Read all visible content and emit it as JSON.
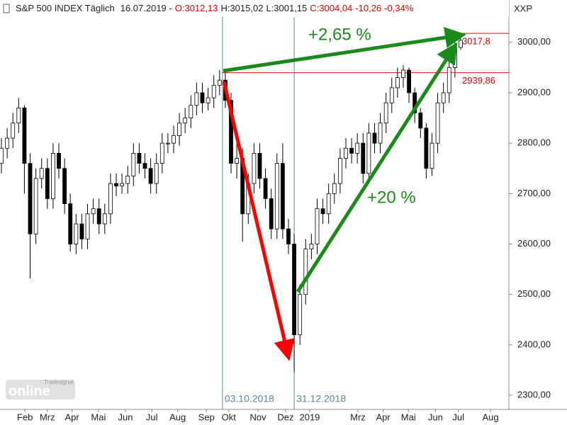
{
  "chart_data": {
    "type": "candlestick",
    "header": {
      "title": "S&P 500 INDEX Täglich",
      "date": "16.07.2019 -",
      "open": "O:3012,13",
      "high": "H:3015,02",
      "low": "L:3001,15",
      "close": "C:3004,04",
      "change": "-10,26",
      "change_pct": "-0,34%"
    },
    "symbol": "XXP",
    "logo": {
      "small": "Tradesignal",
      "big": "online"
    },
    "annotations": {
      "gain_top": "+2,65 %",
      "gain_rebound": "+20 %"
    },
    "up_color": "#ffffff",
    "down_color": "#000000",
    "line_color": "#ff0000",
    "arrow_up_color": "#1a8a1a",
    "arrow_down_color": "#ff0000",
    "open": [
      2760,
      2790,
      2810,
      2840,
      2870,
      2760,
      2620,
      2730,
      2750,
      2690,
      2780,
      2750,
      2680,
      2600,
      2640,
      2610,
      2660,
      2670,
      2640,
      2660,
      2720,
      2715,
      2720,
      2735,
      2780,
      2760,
      2750,
      2720,
      2760,
      2800,
      2800,
      2815,
      2840,
      2850,
      2875,
      2900,
      2880,
      2890,
      2915,
      2925,
      2885,
      2760,
      2770,
      2660,
      2720,
      2780,
      2730,
      2690,
      2630,
      2760,
      2630,
      2600,
      2420,
      2500,
      2590,
      2600,
      2670,
      2660,
      2700,
      2720,
      2770,
      2790,
      2780,
      2800,
      2740,
      2820,
      2800,
      2840,
      2880,
      2910,
      2930,
      2945,
      2900,
      2860,
      2830,
      2750,
      2800,
      2880,
      2900,
      2950,
      2990
    ],
    "high": [
      2810,
      2830,
      2860,
      2890,
      2875,
      2780,
      2750,
      2770,
      2770,
      2800,
      2800,
      2770,
      2700,
      2660,
      2660,
      2680,
      2690,
      2690,
      2680,
      2740,
      2740,
      2740,
      2755,
      2800,
      2800,
      2780,
      2770,
      2780,
      2820,
      2820,
      2835,
      2860,
      2870,
      2895,
      2920,
      2920,
      2910,
      2935,
      2945,
      2940,
      2900,
      2800,
      2790,
      2740,
      2800,
      2800,
      2750,
      2710,
      2780,
      2800,
      2650,
      2620,
      2520,
      2610,
      2620,
      2690,
      2690,
      2720,
      2740,
      2790,
      2810,
      2810,
      2820,
      2820,
      2840,
      2840,
      2860,
      2900,
      2930,
      2950,
      2955,
      2950,
      2910,
      2870,
      2840,
      2820,
      2900,
      2920,
      2970,
      3010,
      3017
    ],
    "low": [
      2740,
      2770,
      2790,
      2820,
      2700,
      2532,
      2600,
      2710,
      2670,
      2670,
      2730,
      2660,
      2585,
      2580,
      2590,
      2590,
      2640,
      2620,
      2620,
      2640,
      2695,
      2700,
      2700,
      2715,
      2740,
      2730,
      2700,
      2700,
      2740,
      2780,
      2780,
      2795,
      2820,
      2830,
      2855,
      2860,
      2865,
      2870,
      2895,
      2870,
      2740,
      2730,
      2605,
      2640,
      2700,
      2710,
      2670,
      2610,
      2610,
      2610,
      2580,
      2346,
      2400,
      2480,
      2570,
      2580,
      2640,
      2640,
      2680,
      2700,
      2750,
      2760,
      2760,
      2720,
      2720,
      2780,
      2780,
      2820,
      2860,
      2890,
      2910,
      2880,
      2840,
      2810,
      2730,
      2735,
      2780,
      2860,
      2880,
      2930,
      2985
    ],
    "close": [
      2790,
      2810,
      2840,
      2870,
      2760,
      2620,
      2730,
      2750,
      2690,
      2780,
      2750,
      2680,
      2600,
      2640,
      2610,
      2660,
      2670,
      2640,
      2660,
      2720,
      2715,
      2720,
      2735,
      2780,
      2760,
      2750,
      2720,
      2760,
      2800,
      2800,
      2815,
      2840,
      2850,
      2875,
      2900,
      2880,
      2890,
      2915,
      2925,
      2885,
      2760,
      2770,
      2660,
      2720,
      2780,
      2730,
      2690,
      2630,
      2760,
      2630,
      2600,
      2420,
      2500,
      2590,
      2600,
      2670,
      2660,
      2700,
      2720,
      2770,
      2790,
      2780,
      2800,
      2740,
      2820,
      2800,
      2840,
      2880,
      2910,
      2930,
      2945,
      2900,
      2860,
      2830,
      2750,
      2800,
      2880,
      2900,
      2950,
      2990,
      3004
    ],
    "xlim": [
      -0.25,
      88.4
    ],
    "xticks": [
      {
        "value": 4.1,
        "label": "Feb"
      },
      {
        "value": 8.0,
        "label": "Mrz"
      },
      {
        "value": 12.3,
        "label": "Apr"
      },
      {
        "value": 16.9,
        "label": "Mai"
      },
      {
        "value": 21.6,
        "label": "Jun"
      },
      {
        "value": 26.2,
        "label": "Jul"
      },
      {
        "value": 30.7,
        "label": "Aug"
      },
      {
        "value": 35.7,
        "label": "Sep"
      },
      {
        "value": 39.6,
        "label": "Okt"
      },
      {
        "value": 44.7,
        "label": "Nov"
      },
      {
        "value": 49.5,
        "label": "Dez"
      },
      {
        "value": 53.7,
        "label": "2019"
      },
      {
        "value": 62.1,
        "label": "Mrz"
      },
      {
        "value": 66.5,
        "label": "Apr"
      },
      {
        "value": 70.9,
        "label": "Mai"
      },
      {
        "value": 75.6,
        "label": "Jun"
      },
      {
        "value": 79.6,
        "label": "Jul"
      },
      {
        "value": 85.2,
        "label": "Aug"
      }
    ],
    "ylim": [
      2272,
      3084
    ],
    "yticks": [
      {
        "value": 2300,
        "label": "2300,00"
      },
      {
        "value": 2400,
        "label": "2400,00"
      },
      {
        "value": 2500,
        "label": "2500,00"
      },
      {
        "value": 2600,
        "label": "2600,00"
      },
      {
        "value": 2700,
        "label": "2700,00"
      },
      {
        "value": 2800,
        "label": "2800,00"
      },
      {
        "value": 2900,
        "label": "2900,00"
      },
      {
        "value": 3000,
        "label": "3000,00"
      }
    ],
    "vlines": [
      {
        "value": 38.5,
        "label": "03.10.2018"
      },
      {
        "value": 51,
        "label": "31.12.2018"
      }
    ],
    "hlines": [
      {
        "value": 3017.8,
        "label": "3017,8",
        "from": 79.9
      },
      {
        "value": 2939.86,
        "label": "2939,86",
        "from": 38.5
      }
    ]
  }
}
